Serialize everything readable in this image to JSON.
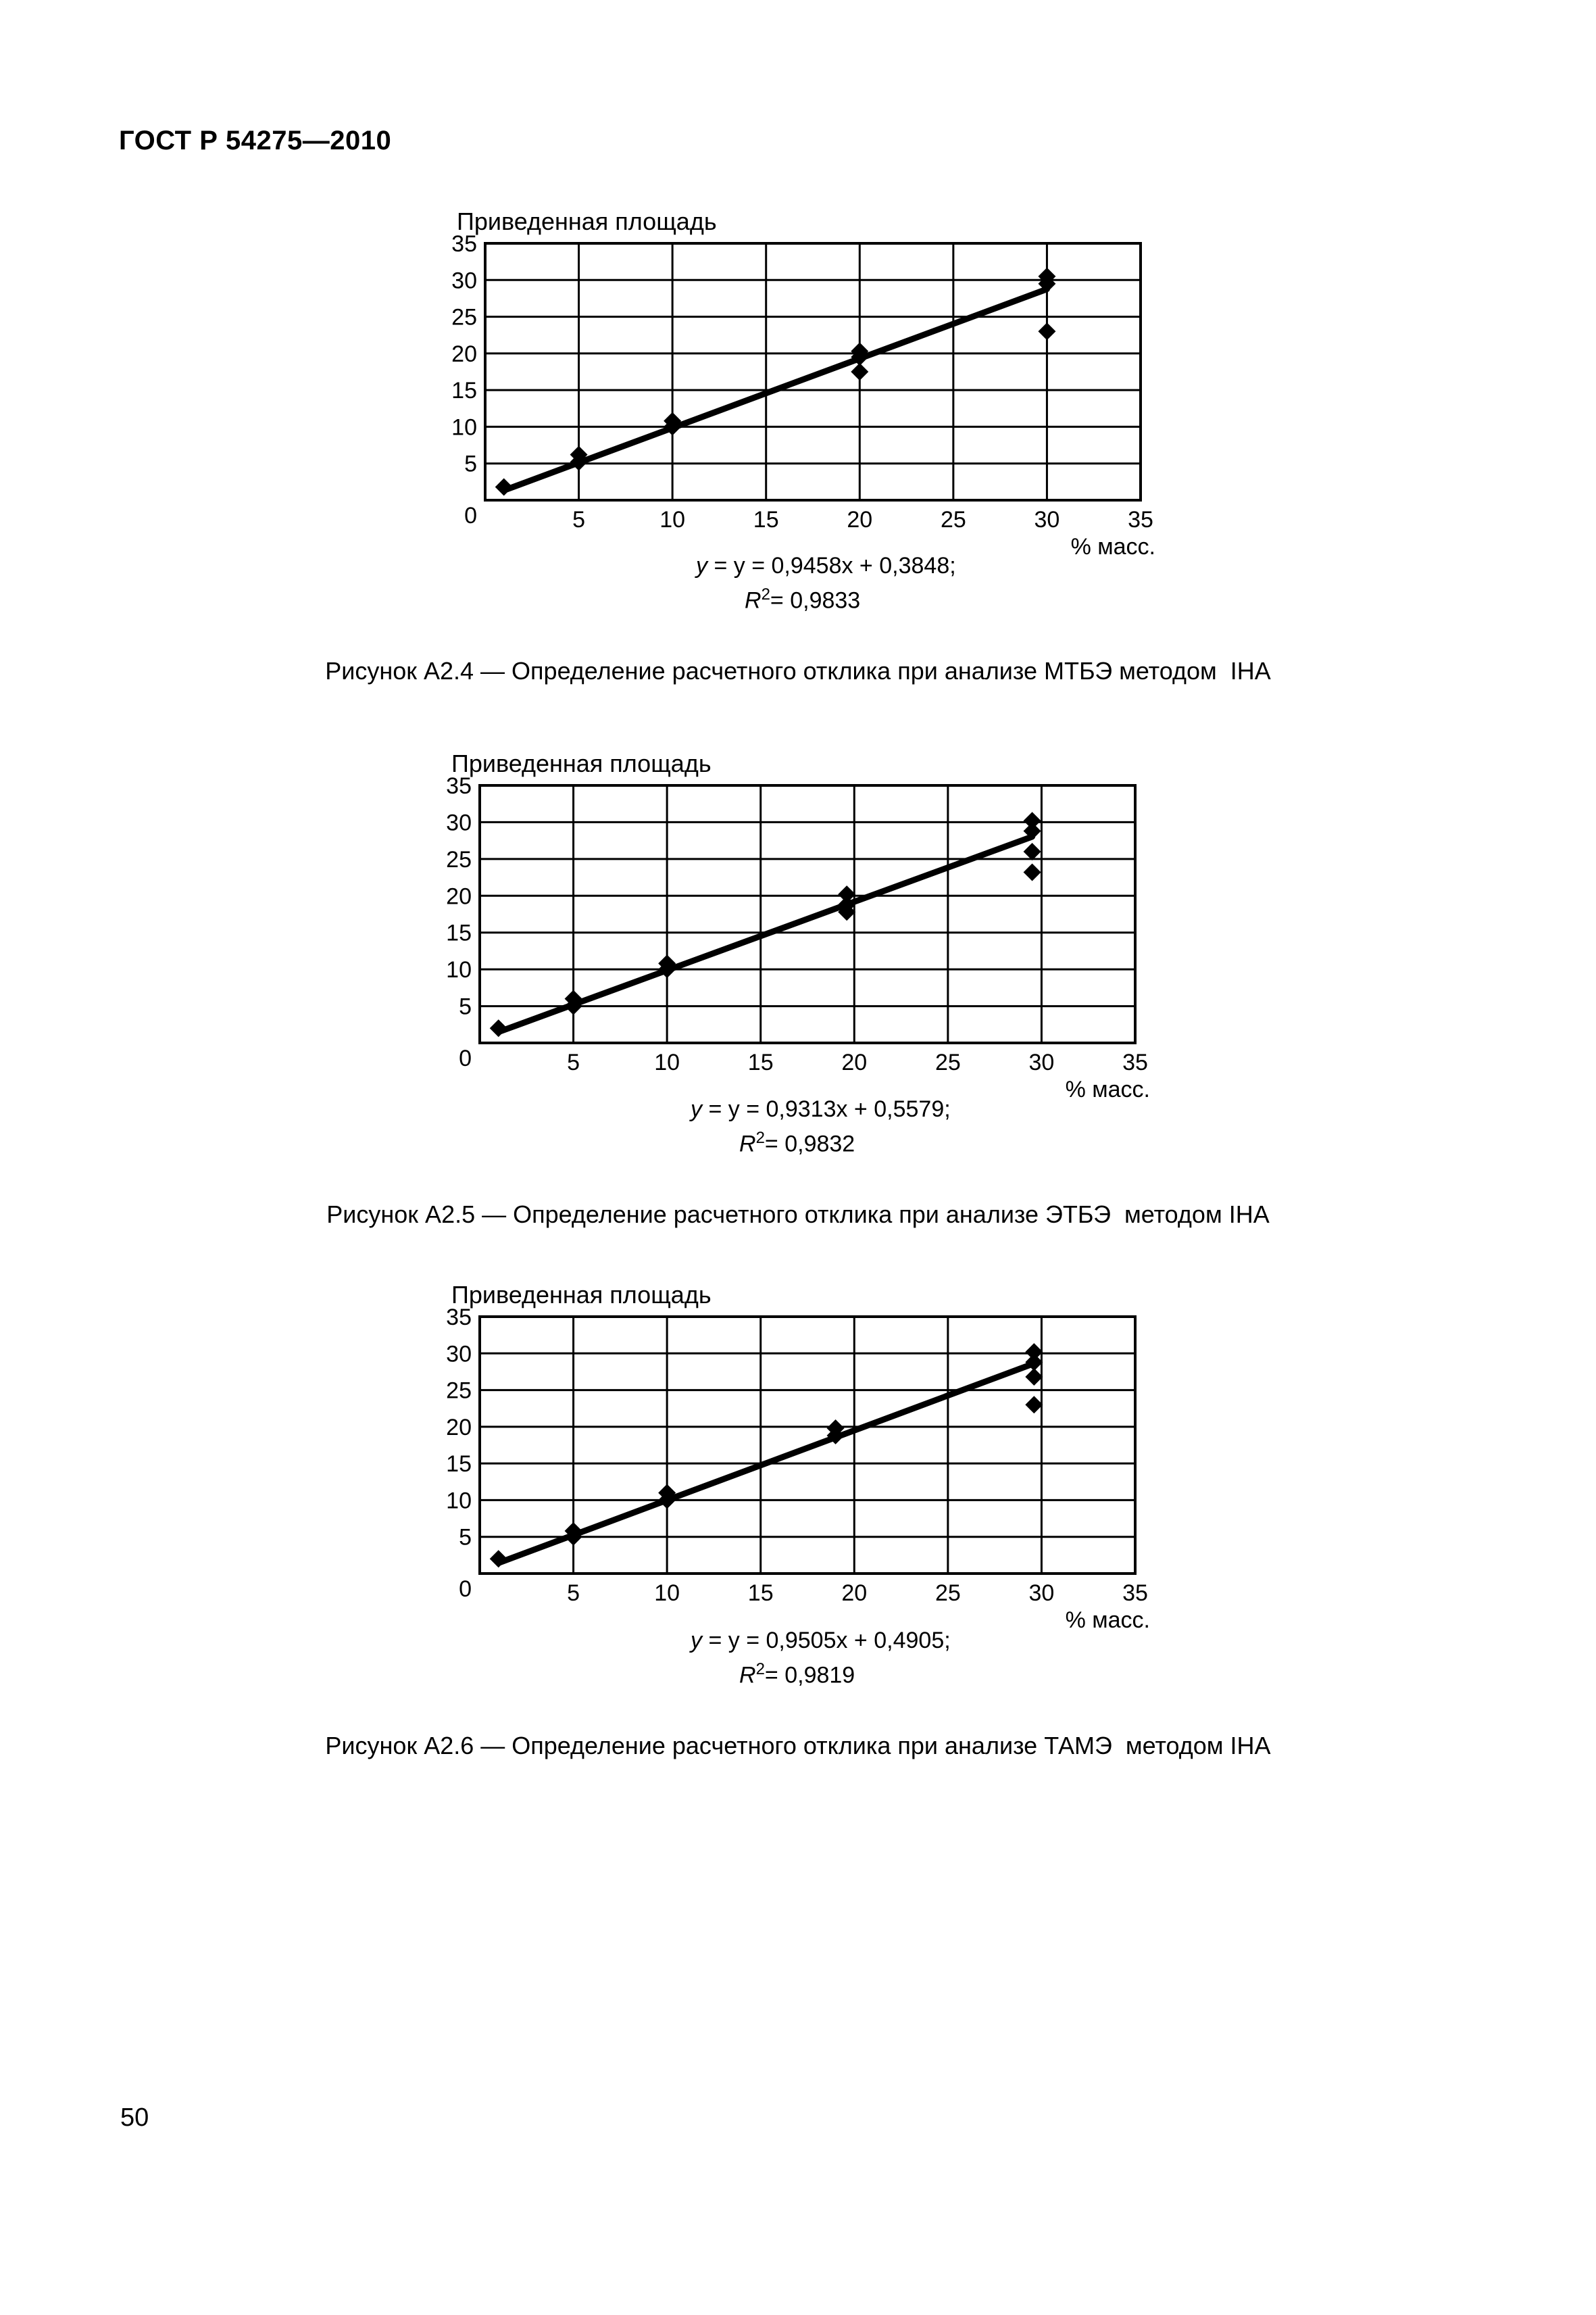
{
  "page": {
    "header": "ГОСТ Р 54275—2010",
    "page_number": "50"
  },
  "figures": [
    {
      "caption": "Рисунок А2.4 — Определение расчетного отклика при анализе МТБЭ методом  IHA",
      "equation": "y = 0,9458x + 0,3848;",
      "r2": "R2 = 0,9833",
      "r2_value": "= 0,9833"
    },
    {
      "caption": "Рисунок А2.5 — Определение расчетного отклика при анализе ЭТБЭ  методом IHA",
      "equation": "y = 0,9313x + 0,5579;",
      "r2": "R2 = 0,9832",
      "r2_value": "= 0,9832"
    },
    {
      "caption": "Рисунок А2.6 — Определение расчетного отклика при анализе ТАМЭ  методом IHA",
      "equation": "y = 0,9505x + 0,4905;",
      "r2": "R2 = 0,9819",
      "r2_value": "= 0,9819"
    }
  ],
  "chart_data": [
    {
      "type": "scatter",
      "ylabel": "Приведенная площадь",
      "xlabel": "% масс.",
      "xlim": [
        0,
        35
      ],
      "ylim": [
        0,
        35
      ],
      "x_ticks": [
        "5",
        "10",
        "15",
        "20",
        "25",
        "30",
        "35"
      ],
      "y_ticks": [
        "0",
        "5",
        "10",
        "15",
        "20",
        "25",
        "30",
        "35"
      ],
      "grid": true,
      "points": [
        [
          1,
          1.8
        ],
        [
          5,
          5.2
        ],
        [
          5,
          6.2
        ],
        [
          10,
          10
        ],
        [
          10,
          10.8
        ],
        [
          20,
          17.5
        ],
        [
          20,
          19.5
        ],
        [
          20,
          20.3
        ],
        [
          30,
          23
        ],
        [
          30,
          29.5
        ],
        [
          30,
          30.5
        ]
      ],
      "trendline": {
        "slope": 0.9458,
        "intercept": 0.3848,
        "x_range": [
          1,
          30
        ]
      }
    },
    {
      "type": "scatter",
      "ylabel": "Приведенная площадь",
      "xlabel": "% масс.",
      "xlim": [
        0,
        35
      ],
      "ylim": [
        0,
        35
      ],
      "x_ticks": [
        "5",
        "10",
        "15",
        "20",
        "25",
        "30",
        "35"
      ],
      "y_ticks": [
        "0",
        "5",
        "10",
        "15",
        "20",
        "25",
        "30",
        "35"
      ],
      "grid": true,
      "points": [
        [
          1,
          2
        ],
        [
          5,
          5
        ],
        [
          5,
          6
        ],
        [
          10,
          10
        ],
        [
          10,
          10.8
        ],
        [
          19.6,
          17.8
        ],
        [
          19.6,
          18.8
        ],
        [
          19.6,
          20.2
        ],
        [
          29.5,
          23.2
        ],
        [
          29.5,
          26
        ],
        [
          29.5,
          28.8
        ],
        [
          29.5,
          30.2
        ]
      ],
      "trendline": {
        "slope": 0.9313,
        "intercept": 0.5579,
        "x_range": [
          1,
          29.5
        ]
      }
    },
    {
      "type": "scatter",
      "ylabel": "Приведенная площадь",
      "xlabel": "% масс.",
      "xlim": [
        0,
        35
      ],
      "ylim": [
        0,
        35
      ],
      "x_ticks": [
        "5",
        "10",
        "15",
        "20",
        "25",
        "30",
        "35"
      ],
      "y_ticks": [
        "0",
        "5",
        "10",
        "15",
        "20",
        "25",
        "30",
        "35"
      ],
      "grid": true,
      "points": [
        [
          1,
          2
        ],
        [
          5,
          5
        ],
        [
          5,
          5.8
        ],
        [
          10,
          10
        ],
        [
          10,
          11
        ],
        [
          19,
          18.8
        ],
        [
          19,
          19.8
        ],
        [
          29.6,
          23
        ],
        [
          29.6,
          26.8
        ],
        [
          29.6,
          28.8
        ],
        [
          29.6,
          30.2
        ]
      ],
      "trendline": {
        "slope": 0.9505,
        "intercept": 0.4905,
        "x_range": [
          1,
          29.6
        ]
      }
    }
  ]
}
